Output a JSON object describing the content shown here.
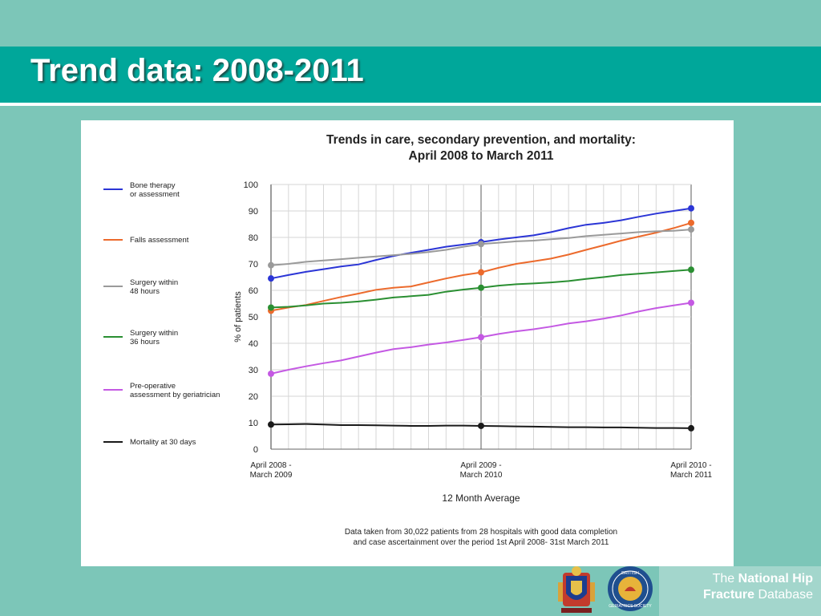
{
  "slide": {
    "title": "Trend data: 2008-2011"
  },
  "colors": {
    "slide_background": "#7cc6b8",
    "title_bar": "#00a79a",
    "footer_box": "#a3d6cc"
  },
  "footer": {
    "line1_prefix": "The",
    "line1_bold": "National Hip",
    "line2_bold": "Fracture",
    "line2_suffix": "Database"
  },
  "logos": [
    {
      "name": "coat-of-arms-logo"
    },
    {
      "name": "british-geriatrics-society-logo",
      "text": "BRITISH GERIATRICS SOCIETY"
    }
  ],
  "chart_data": {
    "type": "line",
    "title": "Trends in care, secondary prevention, and mortality:",
    "subtitle": "April 2008 to March 2011",
    "xlabel": "12 Month Average",
    "ylabel": "% of patients",
    "ylim": [
      0,
      100
    ],
    "yticks": [
      0,
      10,
      20,
      30,
      40,
      50,
      60,
      70,
      80,
      90,
      100
    ],
    "x_labels": [
      {
        "index": 0,
        "line1": "April 2008 -",
        "line2": "March 2009"
      },
      {
        "index": 12,
        "line1": "April 2009 -",
        "line2": "March 2010"
      },
      {
        "index": 24,
        "line1": "April 2010 -",
        "line2": "March 2011"
      }
    ],
    "n_points": 25,
    "grid": true,
    "legend_position": "left",
    "note_line1": "Data taken from 30,022 patients from 28 hospitals with good data completion",
    "note_line2": "and case ascertainment over the period 1st April 2008- 31st March 2011",
    "series": [
      {
        "name_line1": "Bone therapy",
        "name_line2": "or assessment",
        "color": "#2b35d6",
        "values": [
          64.5,
          65.8,
          67,
          68,
          69,
          69.8,
          71.5,
          73,
          74.2,
          75.3,
          76.5,
          77.3,
          78.2,
          79.2,
          80,
          80.8,
          82,
          83.5,
          84.8,
          85.5,
          86.5,
          87.8,
          89,
          90,
          91
        ]
      },
      {
        "name_line1": "Falls assessment",
        "name_line2": "",
        "color": "#ec6a2c",
        "values": [
          52.3,
          53.5,
          54.5,
          56,
          57.5,
          58.8,
          60.2,
          61,
          61.5,
          63,
          64.5,
          65.8,
          66.8,
          68.5,
          70,
          71,
          72,
          73.5,
          75.3,
          77,
          78.8,
          80.3,
          81.8,
          83.5,
          85.5
        ]
      },
      {
        "name_line1": "Surgery within",
        "name_line2": "48 hours",
        "color": "#9a9a9a",
        "values": [
          69.5,
          70,
          70.8,
          71.3,
          71.8,
          72.3,
          72.8,
          73.3,
          73.8,
          74.5,
          75.3,
          76.5,
          77.5,
          78,
          78.5,
          78.8,
          79.3,
          79.8,
          80.5,
          81,
          81.5,
          82,
          82.3,
          82.5,
          83
        ]
      },
      {
        "name_line1": "Surgery within",
        "name_line2": "36 hours",
        "color": "#2a8f32",
        "values": [
          53.5,
          53.8,
          54.3,
          55,
          55.3,
          55.8,
          56.5,
          57.3,
          57.8,
          58.3,
          59.5,
          60.3,
          61,
          61.8,
          62.3,
          62.6,
          63,
          63.5,
          64.3,
          65,
          65.8,
          66.3,
          66.8,
          67.3,
          67.8
        ]
      },
      {
        "name_line1": "Pre-operative",
        "name_line2": "assessment by geriatrician",
        "color": "#c459e3",
        "values": [
          28.5,
          30,
          31.3,
          32.5,
          33.5,
          35,
          36.5,
          37.8,
          38.5,
          39.5,
          40.3,
          41.3,
          42.3,
          43.5,
          44.5,
          45.3,
          46.3,
          47.5,
          48.3,
          49.3,
          50.5,
          52,
          53.3,
          54.3,
          55.3
        ]
      },
      {
        "name_line1": "Mortality at 30 days",
        "name_line2": "",
        "color": "#1a1a1a",
        "values": [
          9.3,
          9.4,
          9.5,
          9.3,
          9.1,
          9.1,
          9,
          8.9,
          8.8,
          8.8,
          8.9,
          8.9,
          8.8,
          8.7,
          8.6,
          8.5,
          8.4,
          8.3,
          8.3,
          8.2,
          8.2,
          8.1,
          8,
          8,
          7.9
        ]
      }
    ]
  }
}
